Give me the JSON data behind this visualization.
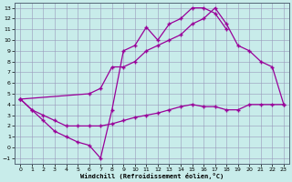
{
  "xlabel": "Windchill (Refroidissement éolien,°C)",
  "bg_color": "#c8ecea",
  "line_color": "#990099",
  "grid_color": "#9999bb",
  "xmin": 0,
  "xmax": 23,
  "ymin": -1,
  "ymax": 13,
  "curve1_x": [
    0,
    1,
    2,
    3,
    4,
    5,
    6,
    7,
    8,
    9,
    10,
    11,
    12,
    13,
    14,
    15,
    16,
    17,
    18
  ],
  "curve1_y": [
    4.5,
    3.5,
    2.5,
    1.5,
    1.0,
    0.5,
    0.2,
    -1.0,
    3.5,
    9.0,
    9.5,
    11.2,
    10.0,
    11.5,
    12.0,
    13.0,
    13.0,
    12.5,
    11.0
  ],
  "curve2_x": [
    0,
    6,
    7,
    8,
    9,
    10,
    11,
    12,
    13,
    14,
    15,
    16,
    17,
    18,
    19,
    20,
    21,
    22,
    23
  ],
  "curve2_y": [
    4.5,
    5.0,
    5.5,
    7.5,
    7.5,
    8.0,
    9.0,
    9.5,
    10.0,
    10.5,
    11.5,
    12.0,
    13.0,
    11.5,
    9.5,
    9.0,
    8.0,
    7.5,
    4.0
  ],
  "curve3_x": [
    0,
    1,
    2,
    3,
    4,
    5,
    6,
    7,
    8,
    9,
    10,
    11,
    12,
    13,
    14,
    15,
    16,
    17,
    18,
    19,
    20,
    21,
    22,
    23
  ],
  "curve3_y": [
    4.5,
    3.5,
    3.0,
    2.5,
    2.0,
    2.0,
    2.0,
    2.0,
    2.2,
    2.5,
    2.8,
    3.0,
    3.2,
    3.5,
    3.8,
    4.0,
    3.8,
    3.8,
    3.5,
    3.5,
    4.0,
    4.0,
    4.0,
    4.0
  ]
}
